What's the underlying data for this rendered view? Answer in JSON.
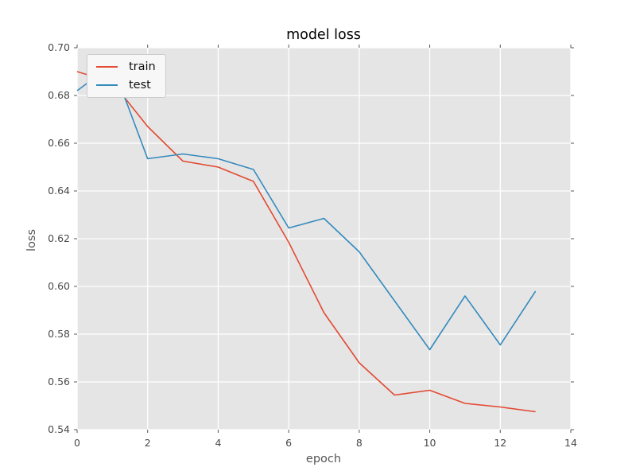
{
  "title": "model loss",
  "colors": {
    "train": "#E24A33",
    "test": "#348ABD",
    "plot_bg": "#E5E5E5",
    "grid": "#FFFFFF",
    "tick_mark": "#555555",
    "tick_label": "#4a4a4a",
    "axis_label": "#555555",
    "title_text": "#000000",
    "legend_bg": "#F7F7F7",
    "legend_border": "#CCCCCC"
  },
  "legend": {
    "items": [
      {
        "label": "train",
        "color": "#E24A33"
      },
      {
        "label": "test",
        "color": "#348ABD"
      }
    ]
  },
  "chart_data": {
    "type": "line",
    "title": "model loss",
    "xlabel": "epoch",
    "ylabel": "loss",
    "x": [
      0,
      1,
      2,
      3,
      4,
      5,
      6,
      7,
      8,
      9,
      10,
      11,
      12,
      13
    ],
    "series": [
      {
        "name": "train",
        "color": "#E24A33",
        "values": [
          0.69,
          0.6855,
          0.667,
          0.6525,
          0.65,
          0.644,
          0.6185,
          0.589,
          0.568,
          0.5545,
          0.5565,
          0.551,
          0.5495,
          0.5475
        ]
      },
      {
        "name": "test",
        "color": "#348ABD",
        "values": [
          0.682,
          0.693,
          0.6535,
          0.6555,
          0.6535,
          0.649,
          0.6245,
          0.6285,
          0.6145,
          0.594,
          0.5735,
          0.596,
          0.5755,
          0.598
        ]
      }
    ],
    "xlim": [
      0,
      14
    ],
    "ylim": [
      0.54,
      0.7
    ],
    "xtick_labels": [
      "0",
      "2",
      "4",
      "6",
      "8",
      "10",
      "12",
      "14"
    ],
    "ytick_labels": [
      "0.54",
      "0.56",
      "0.58",
      "0.60",
      "0.62",
      "0.64",
      "0.66",
      "0.68",
      "0.70"
    ],
    "grid": true,
    "legend_position": "upper left"
  }
}
